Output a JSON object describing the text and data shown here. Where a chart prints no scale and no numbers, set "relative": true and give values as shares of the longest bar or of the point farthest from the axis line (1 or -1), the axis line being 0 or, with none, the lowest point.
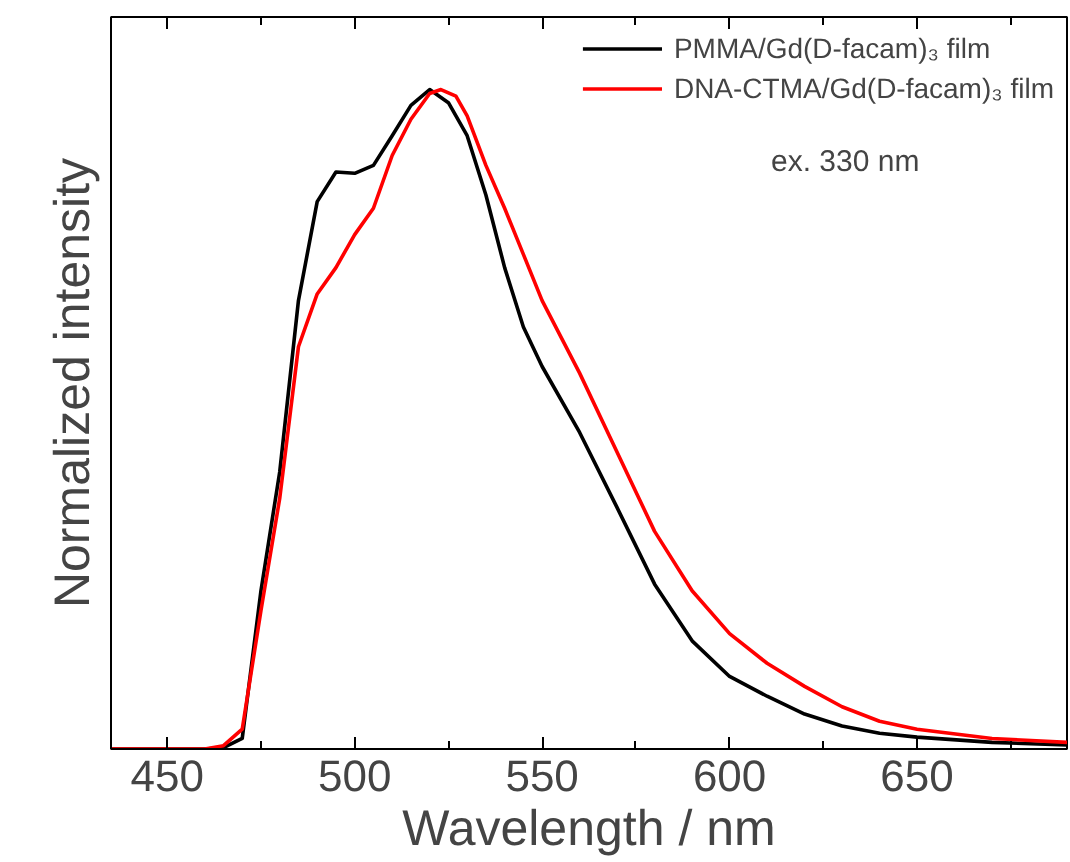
{
  "chart_data": {
    "type": "line",
    "xlabel": "Wavelength / nm",
    "ylabel": "Normalized intensity",
    "relative": true,
    "xlim": [
      435,
      690
    ],
    "xticks": [
      450,
      500,
      550,
      600,
      650
    ],
    "legend": "top right",
    "grid": false,
    "annotations": [
      "ex. 330 nm"
    ],
    "series": [
      {
        "name": "PMMA/Gd(D-facam)₃ film",
        "color": "#000000",
        "x": [
          435,
          460,
          465,
          470,
          475,
          480,
          485,
          490,
          495,
          500,
          505,
          510,
          515,
          520,
          525,
          530,
          535,
          540,
          545,
          550,
          560,
          570,
          580,
          590,
          600,
          610,
          620,
          630,
          640,
          650,
          670,
          690
        ],
        "values": [
          0,
          0,
          0.002,
          0.016,
          0.24,
          0.42,
          0.68,
          0.83,
          0.875,
          0.873,
          0.885,
          0.93,
          0.976,
          1.0,
          0.98,
          0.93,
          0.84,
          0.73,
          0.64,
          0.58,
          0.48,
          0.366,
          0.25,
          0.164,
          0.11,
          0.08,
          0.053,
          0.035,
          0.024,
          0.018,
          0.01,
          0.006
        ]
      },
      {
        "name": "DNA-CTMA/Gd(D-facam)₃ film",
        "color": "#ff0000",
        "x": [
          435,
          460,
          465,
          470,
          475,
          480,
          485,
          490,
          495,
          500,
          505,
          510,
          515,
          520,
          523,
          527,
          530,
          535,
          540,
          545,
          550,
          560,
          570,
          580,
          590,
          600,
          610,
          620,
          630,
          640,
          650,
          670,
          690
        ],
        "values": [
          0,
          0,
          0.005,
          0.03,
          0.21,
          0.38,
          0.61,
          0.69,
          0.73,
          0.78,
          0.82,
          0.9,
          0.955,
          0.994,
          1.0,
          0.99,
          0.96,
          0.885,
          0.82,
          0.75,
          0.68,
          0.57,
          0.45,
          0.33,
          0.24,
          0.175,
          0.13,
          0.095,
          0.064,
          0.042,
          0.03,
          0.016,
          0.01
        ]
      }
    ]
  }
}
